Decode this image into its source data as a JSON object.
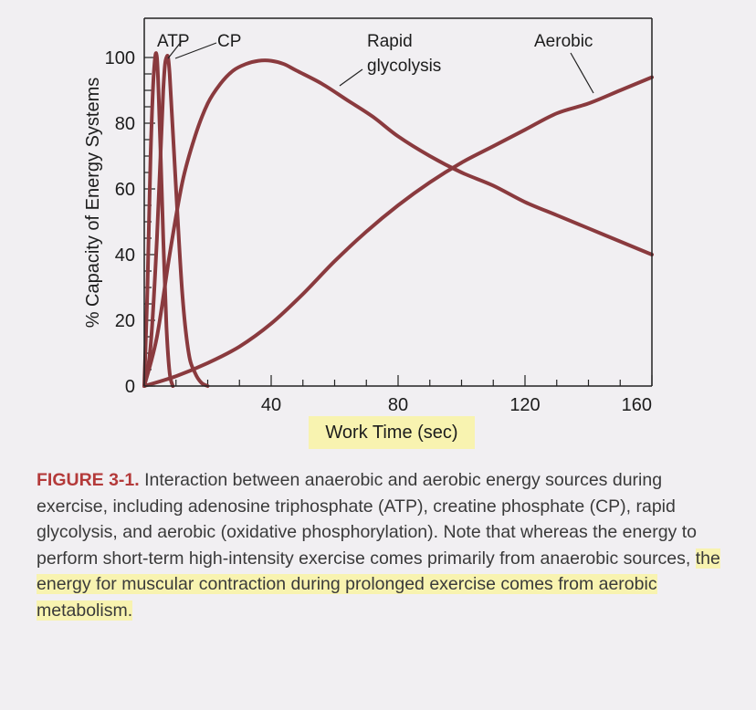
{
  "chart_data": {
    "type": "line",
    "x_range": [
      0,
      160
    ],
    "ylim": [
      0,
      100
    ],
    "x_ticks": [
      40,
      80,
      120,
      160
    ],
    "y_ticks": [
      0,
      20,
      40,
      60,
      80,
      100
    ],
    "ylabel": "% Capacity of Energy Systems",
    "xlabel": "Work Time (sec)",
    "line_color": "#8a3a3e",
    "series": [
      {
        "name": "ATP",
        "x": [
          0,
          1,
          2,
          3,
          4,
          5,
          6,
          7,
          8,
          9
        ],
        "y": [
          0,
          30,
          70,
          95,
          100,
          75,
          45,
          18,
          4,
          0
        ]
      },
      {
        "name": "CP",
        "x": [
          0,
          2,
          4,
          6,
          7,
          8,
          10,
          12,
          14,
          16,
          18,
          20
        ],
        "y": [
          0,
          12,
          45,
          90,
          100,
          95,
          60,
          28,
          10,
          4,
          1,
          0
        ]
      },
      {
        "name": "Rapid glycolysis",
        "x": [
          0,
          4,
          8,
          12,
          16,
          20,
          24,
          28,
          32,
          36,
          40,
          44,
          48,
          56,
          64,
          72,
          80,
          90,
          100,
          110,
          120,
          130,
          140,
          150,
          160
        ],
        "y": [
          0,
          15,
          40,
          62,
          76,
          86,
          92,
          96,
          98,
          99,
          99,
          98,
          96,
          92,
          87,
          82,
          76,
          70,
          65,
          61,
          56,
          52,
          48,
          44,
          40
        ]
      },
      {
        "name": "Aerobic",
        "x": [
          0,
          10,
          20,
          30,
          40,
          50,
          60,
          70,
          80,
          90,
          100,
          110,
          120,
          130,
          140,
          150,
          160
        ],
        "y": [
          0,
          3,
          7,
          12,
          19,
          28,
          38,
          47,
          55,
          62,
          68,
          73,
          78,
          83,
          86,
          90,
          94
        ]
      }
    ],
    "annotations": {
      "atp": "ATP",
      "cp": "CP",
      "glyc_line1": "Rapid",
      "glyc_line2": "glycolysis",
      "aerobic": "Aerobic"
    }
  },
  "caption": {
    "label": "FIGURE 3-1.",
    "text_plain": " Interaction between anaerobic and aerobic energy sources during exercise, including adenosine triphosphate (ATP), creatine phosphate (CP), rapid glycolysis, and aerobic (oxidative phosphorylation). Note that whereas the energy to perform short-term high-intensity exercise comes primarily from anaerobic sources, ",
    "text_highlight": "the energy for muscular contraction during prolonged exercise comes from aerobic metabolism."
  }
}
